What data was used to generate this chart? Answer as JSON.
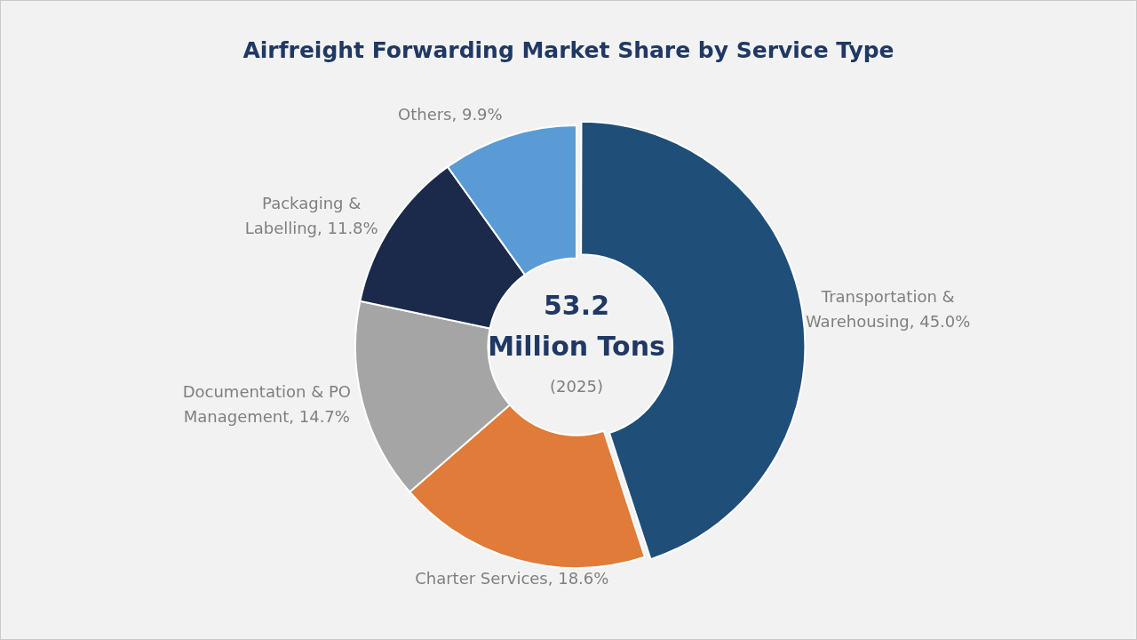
{
  "chart_data": {
    "type": "donut",
    "title": "Airfreight Forwarding Market Share by Service Type",
    "categories": [
      "Transportation & Warehousing",
      "Charter Services",
      "Documentation & PO Management",
      "Packaging & Labelling",
      "Others"
    ],
    "values": [
      45.0,
      18.6,
      14.7,
      11.8,
      9.9
    ],
    "colors": [
      "#1f4e79",
      "#e07b39",
      "#a5a5a5",
      "#1b2a4a",
      "#5b9bd5"
    ],
    "value_labels": [
      "45.0%",
      "18.6%",
      "14.7%",
      "11.8%",
      "9.9%"
    ],
    "annotations": [
      "53.2",
      "Million Tons",
      "(2025)"
    ],
    "legend": false
  }
}
